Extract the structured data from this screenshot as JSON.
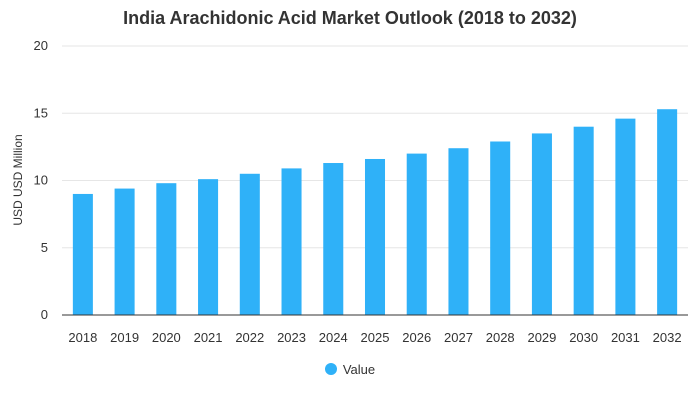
{
  "chart_data": {
    "type": "bar",
    "title": "India Arachidonic Acid Market Outlook (2018 to 2032)",
    "xlabel": "",
    "ylabel": "USD USD Million",
    "ylim": [
      0,
      20
    ],
    "yticks": [
      0,
      5,
      10,
      15,
      20
    ],
    "categories": [
      "2018",
      "2019",
      "2020",
      "2021",
      "2022",
      "2023",
      "2024",
      "2025",
      "2026",
      "2027",
      "2028",
      "2029",
      "2030",
      "2031",
      "2032"
    ],
    "series": [
      {
        "name": "Value",
        "color": "#2fb1f8",
        "values": [
          9.0,
          9.4,
          9.8,
          10.1,
          10.5,
          10.9,
          11.3,
          11.6,
          12.0,
          12.4,
          12.9,
          13.5,
          14.0,
          14.6,
          15.3
        ]
      }
    ],
    "grid": true,
    "legend_position": "bottom"
  }
}
